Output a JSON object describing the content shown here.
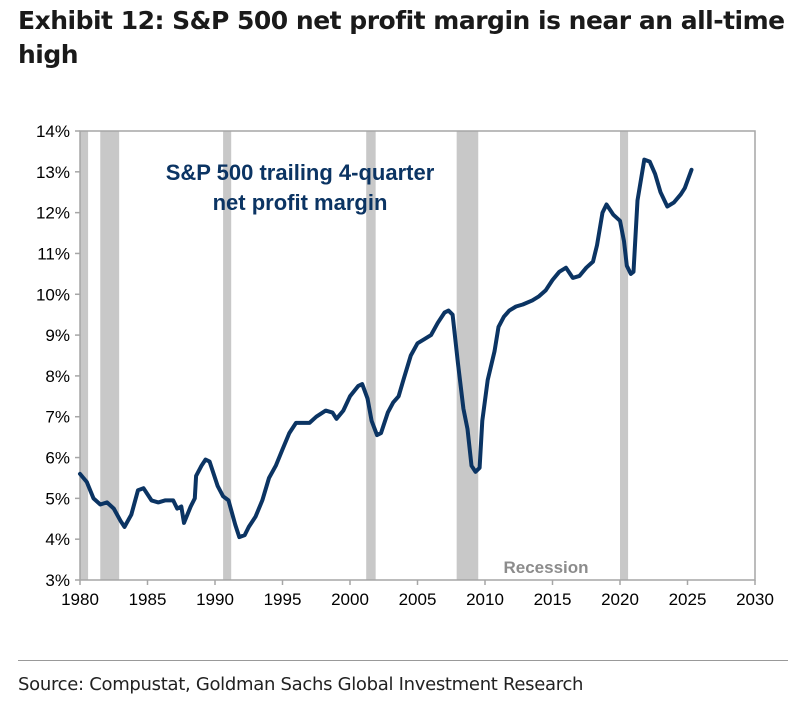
{
  "title": "Exhibit 12: S&P 500 net profit margin is near an all-time high",
  "source": "Source: Compustat, Goldman Sachs Global Investment Research",
  "chart_data": {
    "type": "line",
    "title": "Exhibit 12: S&P 500 net profit margin is near an all-time high",
    "annotation_lines": [
      "S&P 500 trailing 4-quarter",
      "net profit margin"
    ],
    "recession_label": "Recession",
    "xlim": [
      1980,
      2030
    ],
    "ylim": [
      3,
      14
    ],
    "x_ticks": [
      1980,
      1985,
      1990,
      1995,
      2000,
      2005,
      2010,
      2015,
      2020,
      2025,
      2030
    ],
    "y_ticks": [
      3,
      4,
      5,
      6,
      7,
      8,
      9,
      10,
      11,
      12,
      13,
      14
    ],
    "y_tick_suffix": "%",
    "line_color": "#0b3463",
    "recession_color": "#c8c8c8",
    "recessions": [
      [
        1980.0,
        1980.6
      ],
      [
        1981.5,
        1982.9
      ],
      [
        1990.6,
        1991.2
      ],
      [
        2001.2,
        2001.9
      ],
      [
        2007.9,
        2009.5
      ],
      [
        2020.0,
        2020.6
      ]
    ],
    "series": [
      {
        "name": "S&P 500 trailing 4-quarter net profit margin",
        "x": [
          1980,
          1980.5,
          1981,
          1981.5,
          1982,
          1982.5,
          1983,
          1983.3,
          1983.8,
          1984.3,
          1984.7,
          1985.3,
          1985.8,
          1986.3,
          1986.9,
          1987.2,
          1987.5,
          1987.7,
          1988.2,
          1988.5,
          1988.6,
          1989,
          1989.3,
          1989.6,
          1990.2,
          1990.6,
          1991,
          1991.5,
          1991.8,
          1992.2,
          1992.5,
          1993,
          1993.5,
          1994,
          1994.5,
          1995,
          1995.5,
          1996,
          1996.5,
          1997,
          1997.5,
          1998.2,
          1998.7,
          1999,
          1999.5,
          2000,
          2000.6,
          2000.9,
          2001.3,
          2001.6,
          2002,
          2002.3,
          2002.8,
          2003.2,
          2003.6,
          2004,
          2004.5,
          2005,
          2005.5,
          2006,
          2006.5,
          2007,
          2007.3,
          2007.6,
          2008,
          2008.4,
          2008.7,
          2009,
          2009.3,
          2009.6,
          2009.8,
          2010.2,
          2010.7,
          2011,
          2011.4,
          2011.8,
          2012.3,
          2012.8,
          2013.5,
          2014,
          2014.5,
          2015,
          2015.5,
          2016,
          2016.5,
          2017,
          2017.5,
          2018,
          2018.3,
          2018.7,
          2019,
          2019.5,
          2020,
          2020.3,
          2020.5,
          2020.8,
          2021,
          2021.3,
          2021.8,
          2022.2,
          2022.6,
          2023,
          2023.5,
          2024,
          2024.5,
          2024.8,
          2025.3
        ],
        "values": [
          5.6,
          5.4,
          5.0,
          4.85,
          4.9,
          4.75,
          4.45,
          4.3,
          4.6,
          5.2,
          5.25,
          4.95,
          4.9,
          4.95,
          4.95,
          4.75,
          4.8,
          4.4,
          4.8,
          5.0,
          5.55,
          5.8,
          5.95,
          5.9,
          5.3,
          5.05,
          4.95,
          4.35,
          4.05,
          4.1,
          4.3,
          4.55,
          4.95,
          5.5,
          5.8,
          6.2,
          6.6,
          6.85,
          6.85,
          6.85,
          7.0,
          7.15,
          7.1,
          6.95,
          7.15,
          7.5,
          7.75,
          7.8,
          7.45,
          6.9,
          6.55,
          6.6,
          7.1,
          7.35,
          7.5,
          7.95,
          8.5,
          8.8,
          8.9,
          9.0,
          9.3,
          9.55,
          9.6,
          9.5,
          8.3,
          7.2,
          6.7,
          5.8,
          5.65,
          5.75,
          6.9,
          7.9,
          8.6,
          9.2,
          9.45,
          9.6,
          9.7,
          9.75,
          9.85,
          9.95,
          10.1,
          10.35,
          10.55,
          10.65,
          10.4,
          10.45,
          10.65,
          10.8,
          11.2,
          12.0,
          12.2,
          11.95,
          11.8,
          11.3,
          10.7,
          10.5,
          10.55,
          12.3,
          13.3,
          13.25,
          12.95,
          12.5,
          12.15,
          12.25,
          12.45,
          12.6,
          13.05
        ]
      }
    ],
    "grid": false,
    "legend": "none"
  }
}
